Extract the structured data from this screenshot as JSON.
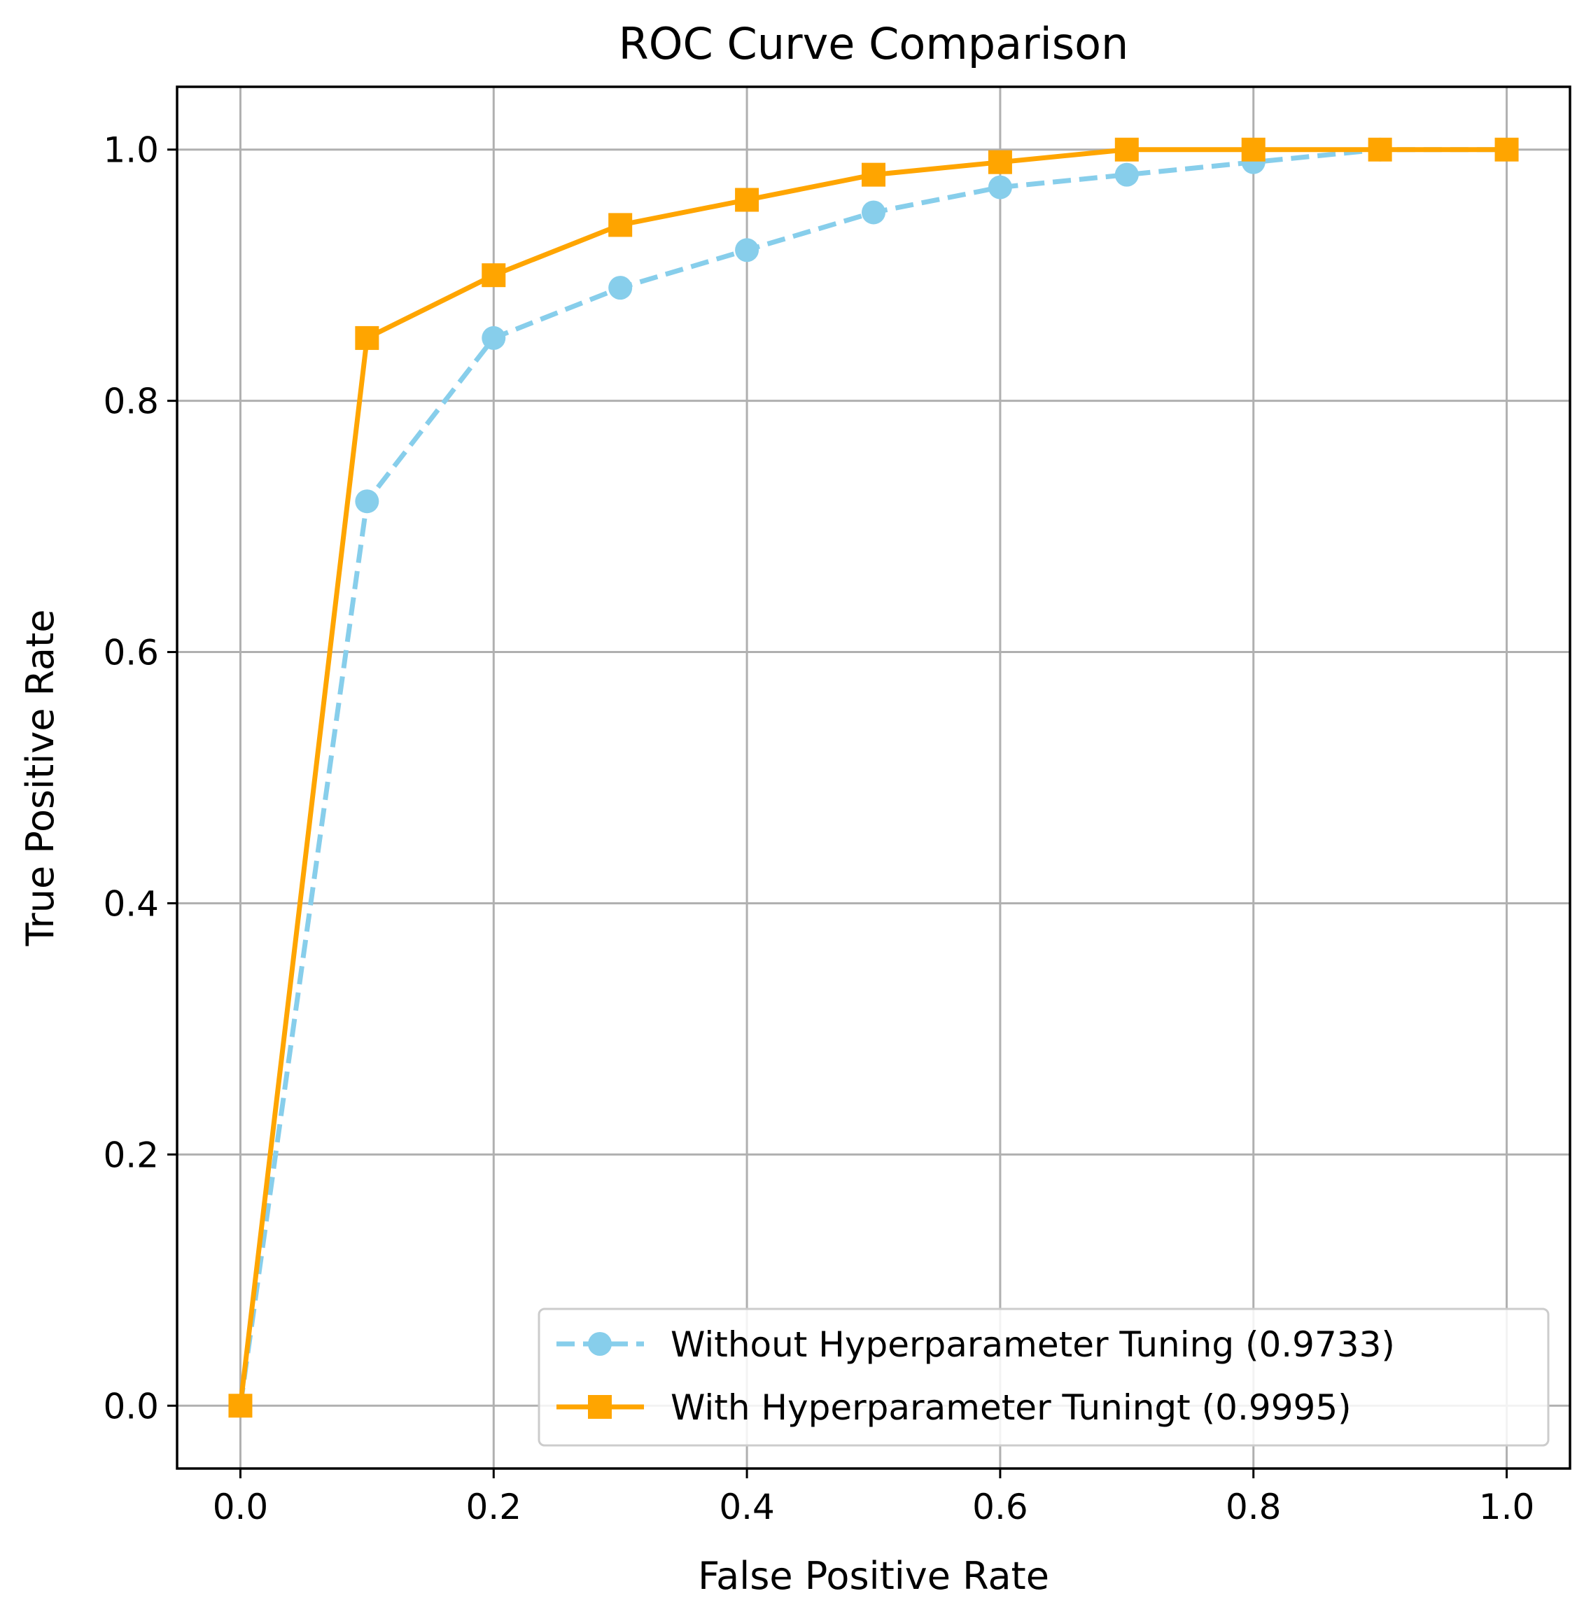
{
  "chart_data": {
    "type": "line",
    "title": "ROC Curve Comparison",
    "xlabel": "False Positive Rate",
    "ylabel": "True Positive Rate",
    "xlim": [
      -0.05,
      1.05
    ],
    "ylim": [
      -0.05,
      1.05
    ],
    "grid": true,
    "x_ticks": [
      0.0,
      0.2,
      0.4,
      0.6,
      0.8,
      1.0
    ],
    "y_ticks": [
      0.0,
      0.2,
      0.4,
      0.6,
      0.8,
      1.0
    ],
    "x_tick_labels": [
      "0.0",
      "0.2",
      "0.4",
      "0.6",
      "0.8",
      "1.0"
    ],
    "y_tick_labels": [
      "0.0",
      "0.2",
      "0.4",
      "0.6",
      "0.8",
      "1.0"
    ],
    "legend_position": "lower-right",
    "series": [
      {
        "name": "Without Hyperparameter Tuning (0.9733)",
        "color": "#87ceeb",
        "line_style": "dashed",
        "marker": "circle",
        "x": [
          0.0,
          0.1,
          0.2,
          0.3,
          0.4,
          0.5,
          0.6,
          0.7,
          0.8,
          0.9,
          1.0
        ],
        "y": [
          0.0,
          0.72,
          0.85,
          0.89,
          0.92,
          0.95,
          0.97,
          0.98,
          0.99,
          1.0,
          1.0
        ]
      },
      {
        "name": "With Hyperparameter Tuningt (0.9995)",
        "color": "#ffa500",
        "line_style": "solid",
        "marker": "square",
        "x": [
          0.0,
          0.1,
          0.2,
          0.3,
          0.4,
          0.5,
          0.6,
          0.7,
          0.8,
          0.9,
          1.0
        ],
        "y": [
          0.0,
          0.85,
          0.9,
          0.94,
          0.96,
          0.98,
          0.99,
          1.0,
          1.0,
          1.0,
          1.0
        ]
      }
    ]
  }
}
